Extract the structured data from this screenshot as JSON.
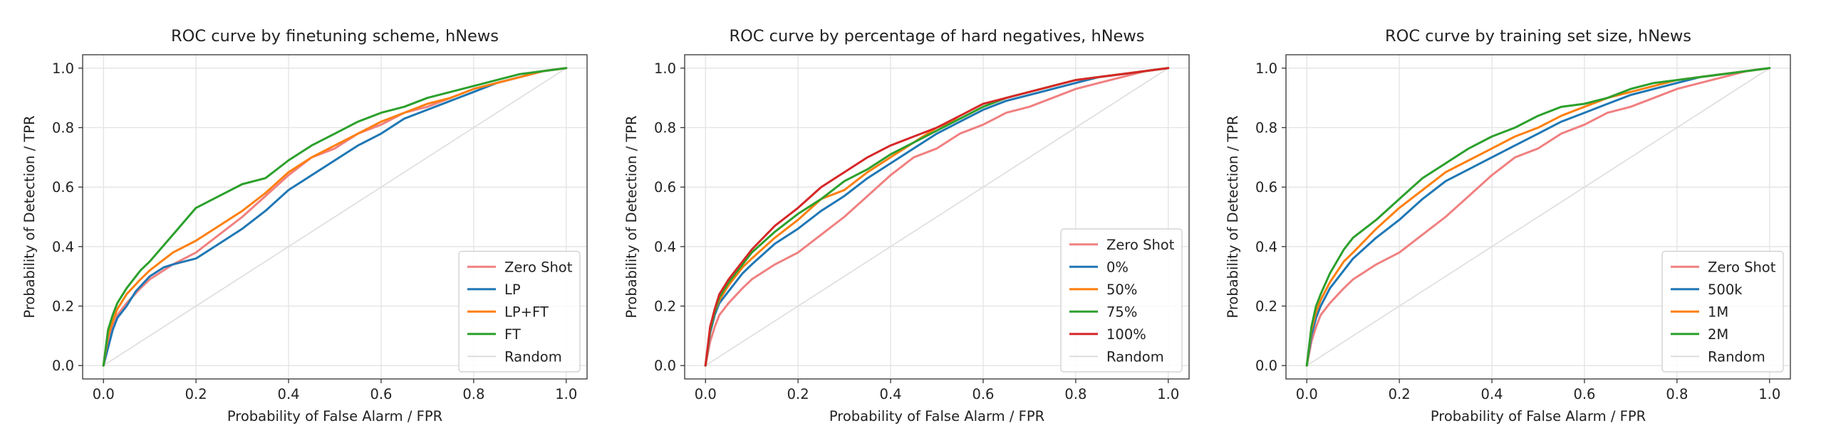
{
  "chart_data": [
    {
      "type": "line",
      "title": "ROC curve by finetuning scheme, hNews",
      "xlabel": "Probability of False Alarm / FPR",
      "ylabel": "Probability of Detection / TPR",
      "xlim": [
        0,
        1
      ],
      "ylim": [
        0,
        1
      ],
      "xticks": [
        "0.0",
        "0.2",
        "0.4",
        "0.6",
        "0.8",
        "1.0"
      ],
      "yticks": [
        "0.0",
        "0.2",
        "0.4",
        "0.6",
        "0.8",
        "1.0"
      ],
      "grid": true,
      "legend_position": "lower-right",
      "series": [
        {
          "name": "Zero Shot",
          "color": "#f08080",
          "x": [
            0,
            0.01,
            0.02,
            0.03,
            0.05,
            0.08,
            0.1,
            0.15,
            0.2,
            0.25,
            0.3,
            0.35,
            0.4,
            0.45,
            0.5,
            0.55,
            0.6,
            0.65,
            0.7,
            0.75,
            0.8,
            0.85,
            0.9,
            0.95,
            1.0
          ],
          "y": [
            0,
            0.08,
            0.13,
            0.17,
            0.21,
            0.26,
            0.29,
            0.34,
            0.38,
            0.44,
            0.5,
            0.57,
            0.64,
            0.7,
            0.73,
            0.78,
            0.81,
            0.85,
            0.87,
            0.9,
            0.93,
            0.95,
            0.97,
            0.99,
            1.0
          ]
        },
        {
          "name": "LP",
          "color": "#1f77b4",
          "x": [
            0,
            0.01,
            0.02,
            0.03,
            0.05,
            0.07,
            0.1,
            0.13,
            0.15,
            0.2,
            0.25,
            0.3,
            0.35,
            0.4,
            0.45,
            0.5,
            0.55,
            0.6,
            0.65,
            0.7,
            0.75,
            0.8,
            0.85,
            0.9,
            0.95,
            1.0
          ],
          "y": [
            0,
            0.06,
            0.12,
            0.16,
            0.2,
            0.25,
            0.3,
            0.33,
            0.34,
            0.36,
            0.41,
            0.46,
            0.52,
            0.59,
            0.64,
            0.69,
            0.74,
            0.78,
            0.83,
            0.86,
            0.89,
            0.92,
            0.95,
            0.97,
            0.99,
            1.0
          ]
        },
        {
          "name": "LP+FT",
          "color": "#ff7f0e",
          "x": [
            0,
            0.01,
            0.02,
            0.03,
            0.05,
            0.08,
            0.1,
            0.15,
            0.2,
            0.25,
            0.3,
            0.35,
            0.4,
            0.45,
            0.5,
            0.55,
            0.6,
            0.65,
            0.7,
            0.75,
            0.8,
            0.85,
            0.9,
            0.95,
            1.0
          ],
          "y": [
            0,
            0.1,
            0.15,
            0.19,
            0.24,
            0.29,
            0.32,
            0.38,
            0.42,
            0.47,
            0.52,
            0.58,
            0.65,
            0.7,
            0.74,
            0.78,
            0.82,
            0.85,
            0.88,
            0.9,
            0.93,
            0.95,
            0.97,
            0.99,
            1.0
          ]
        },
        {
          "name": "FT",
          "color": "#2ca02c",
          "x": [
            0,
            0.01,
            0.02,
            0.03,
            0.05,
            0.08,
            0.1,
            0.15,
            0.2,
            0.25,
            0.3,
            0.35,
            0.4,
            0.45,
            0.5,
            0.55,
            0.6,
            0.65,
            0.7,
            0.75,
            0.8,
            0.85,
            0.9,
            0.95,
            1.0
          ],
          "y": [
            0,
            0.12,
            0.17,
            0.21,
            0.26,
            0.32,
            0.35,
            0.44,
            0.53,
            0.57,
            0.61,
            0.63,
            0.69,
            0.74,
            0.78,
            0.82,
            0.85,
            0.87,
            0.9,
            0.92,
            0.94,
            0.96,
            0.98,
            0.99,
            1.0
          ]
        },
        {
          "name": "Random",
          "color": "#dddddd",
          "x": [
            0,
            1
          ],
          "y": [
            0,
            1
          ]
        }
      ]
    },
    {
      "type": "line",
      "title": "ROC curve by percentage of hard negatives, hNews",
      "xlabel": "Probability of False Alarm / FPR",
      "ylabel": "Probability of Detection / TPR",
      "xlim": [
        0,
        1
      ],
      "ylim": [
        0,
        1
      ],
      "xticks": [
        "0.0",
        "0.2",
        "0.4",
        "0.6",
        "0.8",
        "1.0"
      ],
      "yticks": [
        "0.0",
        "0.2",
        "0.4",
        "0.6",
        "0.8",
        "1.0"
      ],
      "grid": true,
      "legend_position": "lower-right",
      "series": [
        {
          "name": "Zero Shot",
          "color": "#f08080",
          "x": [
            0,
            0.01,
            0.02,
            0.03,
            0.05,
            0.08,
            0.1,
            0.15,
            0.2,
            0.25,
            0.3,
            0.35,
            0.4,
            0.45,
            0.5,
            0.55,
            0.6,
            0.65,
            0.7,
            0.75,
            0.8,
            0.85,
            0.9,
            0.95,
            1.0
          ],
          "y": [
            0,
            0.08,
            0.13,
            0.17,
            0.21,
            0.26,
            0.29,
            0.34,
            0.38,
            0.44,
            0.5,
            0.57,
            0.64,
            0.7,
            0.73,
            0.78,
            0.81,
            0.85,
            0.87,
            0.9,
            0.93,
            0.95,
            0.97,
            0.99,
            1.0
          ]
        },
        {
          "name": "0%",
          "color": "#1f77b4",
          "x": [
            0,
            0.01,
            0.02,
            0.03,
            0.05,
            0.08,
            0.1,
            0.15,
            0.2,
            0.25,
            0.3,
            0.35,
            0.4,
            0.45,
            0.5,
            0.55,
            0.6,
            0.65,
            0.7,
            0.75,
            0.8,
            0.85,
            0.9,
            0.95,
            1.0
          ],
          "y": [
            0,
            0.11,
            0.17,
            0.21,
            0.25,
            0.31,
            0.34,
            0.41,
            0.46,
            0.52,
            0.57,
            0.63,
            0.68,
            0.73,
            0.78,
            0.82,
            0.86,
            0.89,
            0.91,
            0.93,
            0.95,
            0.97,
            0.98,
            0.99,
            1.0
          ]
        },
        {
          "name": "50%",
          "color": "#ff7f0e",
          "x": [
            0,
            0.01,
            0.02,
            0.03,
            0.05,
            0.08,
            0.1,
            0.15,
            0.2,
            0.25,
            0.3,
            0.35,
            0.4,
            0.45,
            0.5,
            0.55,
            0.6,
            0.65,
            0.7,
            0.75,
            0.8,
            0.85,
            0.9,
            0.95,
            1.0
          ],
          "y": [
            0,
            0.12,
            0.18,
            0.22,
            0.27,
            0.33,
            0.36,
            0.43,
            0.49,
            0.56,
            0.59,
            0.65,
            0.7,
            0.75,
            0.8,
            0.83,
            0.87,
            0.9,
            0.92,
            0.94,
            0.96,
            0.97,
            0.98,
            0.99,
            1.0
          ]
        },
        {
          "name": "75%",
          "color": "#2ca02c",
          "x": [
            0,
            0.01,
            0.02,
            0.03,
            0.05,
            0.08,
            0.1,
            0.15,
            0.2,
            0.25,
            0.3,
            0.35,
            0.4,
            0.45,
            0.5,
            0.55,
            0.6,
            0.65,
            0.7,
            0.75,
            0.8,
            0.85,
            0.9,
            0.95,
            1.0
          ],
          "y": [
            0,
            0.12,
            0.18,
            0.23,
            0.28,
            0.34,
            0.38,
            0.45,
            0.51,
            0.56,
            0.62,
            0.66,
            0.71,
            0.75,
            0.79,
            0.83,
            0.87,
            0.9,
            0.92,
            0.94,
            0.96,
            0.97,
            0.98,
            0.99,
            1.0
          ]
        },
        {
          "name": "100%",
          "color": "#d62728",
          "x": [
            0,
            0.01,
            0.02,
            0.03,
            0.05,
            0.08,
            0.1,
            0.15,
            0.2,
            0.25,
            0.3,
            0.35,
            0.4,
            0.45,
            0.5,
            0.55,
            0.6,
            0.65,
            0.7,
            0.75,
            0.8,
            0.85,
            0.9,
            0.95,
            1.0
          ],
          "y": [
            0,
            0.13,
            0.19,
            0.24,
            0.29,
            0.35,
            0.39,
            0.47,
            0.53,
            0.6,
            0.65,
            0.7,
            0.74,
            0.77,
            0.8,
            0.84,
            0.88,
            0.9,
            0.92,
            0.94,
            0.96,
            0.97,
            0.98,
            0.99,
            1.0
          ]
        },
        {
          "name": "Random",
          "color": "#dddddd",
          "x": [
            0,
            1
          ],
          "y": [
            0,
            1
          ]
        }
      ]
    },
    {
      "type": "line",
      "title": "ROC curve by training set size, hNews",
      "xlabel": "Probability of False Alarm / FPR",
      "ylabel": "Probability of Detection / TPR",
      "xlim": [
        0,
        1
      ],
      "ylim": [
        0,
        1
      ],
      "xticks": [
        "0.0",
        "0.2",
        "0.4",
        "0.6",
        "0.8",
        "1.0"
      ],
      "yticks": [
        "0.0",
        "0.2",
        "0.4",
        "0.6",
        "0.8",
        "1.0"
      ],
      "grid": true,
      "legend_position": "lower-right",
      "series": [
        {
          "name": "Zero Shot",
          "color": "#f08080",
          "x": [
            0,
            0.01,
            0.02,
            0.03,
            0.05,
            0.08,
            0.1,
            0.15,
            0.2,
            0.25,
            0.3,
            0.35,
            0.4,
            0.45,
            0.5,
            0.55,
            0.6,
            0.65,
            0.7,
            0.75,
            0.8,
            0.85,
            0.9,
            0.95,
            1.0
          ],
          "y": [
            0,
            0.08,
            0.13,
            0.17,
            0.21,
            0.26,
            0.29,
            0.34,
            0.38,
            0.44,
            0.5,
            0.57,
            0.64,
            0.7,
            0.73,
            0.78,
            0.81,
            0.85,
            0.87,
            0.9,
            0.93,
            0.95,
            0.97,
            0.99,
            1.0
          ]
        },
        {
          "name": "500k",
          "color": "#1f77b4",
          "x": [
            0,
            0.01,
            0.02,
            0.03,
            0.05,
            0.08,
            0.1,
            0.15,
            0.2,
            0.25,
            0.3,
            0.35,
            0.4,
            0.45,
            0.5,
            0.55,
            0.6,
            0.65,
            0.7,
            0.75,
            0.8,
            0.85,
            0.9,
            0.95,
            1.0
          ],
          "y": [
            0,
            0.1,
            0.16,
            0.2,
            0.26,
            0.32,
            0.36,
            0.43,
            0.49,
            0.56,
            0.62,
            0.66,
            0.7,
            0.74,
            0.78,
            0.82,
            0.85,
            0.88,
            0.91,
            0.93,
            0.95,
            0.97,
            0.98,
            0.99,
            1.0
          ]
        },
        {
          "name": "1M",
          "color": "#ff7f0e",
          "x": [
            0,
            0.01,
            0.02,
            0.03,
            0.05,
            0.08,
            0.1,
            0.15,
            0.2,
            0.25,
            0.3,
            0.35,
            0.4,
            0.45,
            0.5,
            0.55,
            0.6,
            0.65,
            0.7,
            0.75,
            0.8,
            0.85,
            0.9,
            0.95,
            1.0
          ],
          "y": [
            0,
            0.12,
            0.18,
            0.22,
            0.28,
            0.35,
            0.38,
            0.46,
            0.53,
            0.59,
            0.65,
            0.69,
            0.73,
            0.77,
            0.8,
            0.84,
            0.87,
            0.9,
            0.92,
            0.94,
            0.96,
            0.97,
            0.98,
            0.99,
            1.0
          ]
        },
        {
          "name": "2M",
          "color": "#2ca02c",
          "x": [
            0,
            0.01,
            0.02,
            0.03,
            0.05,
            0.08,
            0.1,
            0.15,
            0.2,
            0.25,
            0.3,
            0.35,
            0.4,
            0.45,
            0.5,
            0.55,
            0.6,
            0.65,
            0.7,
            0.75,
            0.8,
            0.85,
            0.9,
            0.95,
            1.0
          ],
          "y": [
            0,
            0.13,
            0.2,
            0.24,
            0.31,
            0.39,
            0.43,
            0.49,
            0.56,
            0.63,
            0.68,
            0.73,
            0.77,
            0.8,
            0.84,
            0.87,
            0.88,
            0.9,
            0.93,
            0.95,
            0.96,
            0.97,
            0.98,
            0.99,
            1.0
          ]
        },
        {
          "name": "Random",
          "color": "#dddddd",
          "x": [
            0,
            1
          ],
          "y": [
            0,
            1
          ]
        }
      ]
    }
  ]
}
